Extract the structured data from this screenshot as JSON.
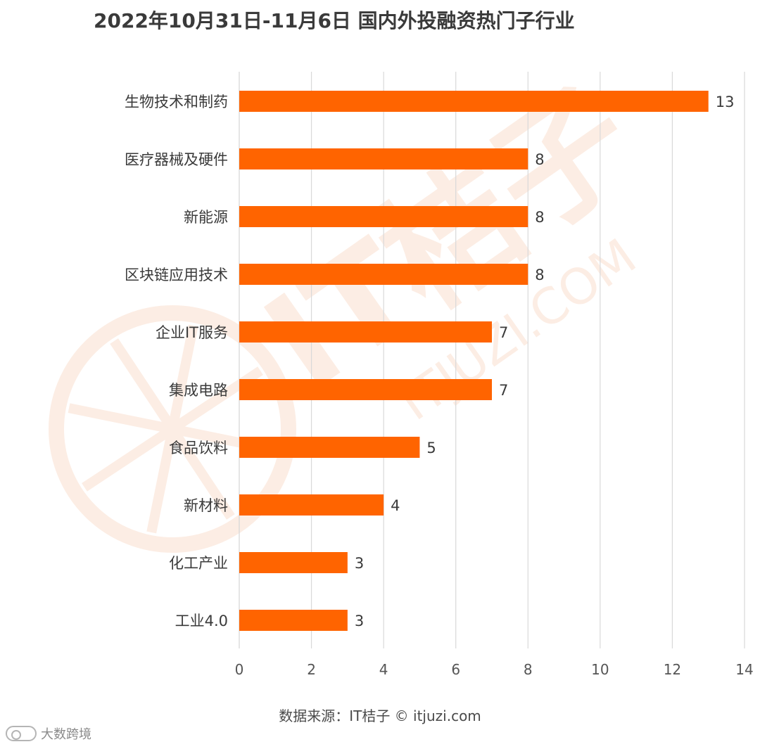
{
  "title": "2022年10月31日-11月6日 国内外投融资热门子行业",
  "source": "数据来源：IT桔子 © itjuzi.com",
  "watermark": {
    "brand": "IT桔子",
    "url": "ITJUZI.COM",
    "corner_text": "大数跨境"
  },
  "colors": {
    "bar": "#FF6400",
    "grid": "#d9d9d9",
    "text": "#3a3a3a",
    "watermark": "#FCEDE4"
  },
  "chart_data": {
    "type": "bar",
    "orientation": "horizontal",
    "categories": [
      "生物技术和制药",
      "医疗器械及硬件",
      "新能源",
      "区块链应用技术",
      "企业IT服务",
      "集成电路",
      "食品饮料",
      "新材料",
      "化工产业",
      "工业4.0"
    ],
    "values": [
      13,
      8,
      8,
      8,
      7,
      7,
      5,
      4,
      3,
      3
    ],
    "xlim": [
      0,
      14
    ],
    "xticks": [
      "0",
      "2",
      "4",
      "6",
      "8",
      "10",
      "12",
      "14"
    ],
    "grid": true,
    "data_labels": [
      "13",
      "8",
      "8",
      "8",
      "7",
      "7",
      "5",
      "4",
      "3",
      "3"
    ]
  }
}
